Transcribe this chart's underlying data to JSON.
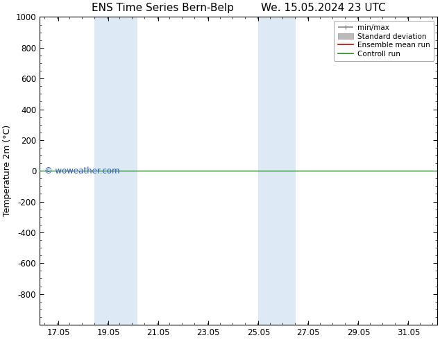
{
  "title": "ENS Time Series Bern-Belp        We. 15.05.2024 23 UTC",
  "ylabel": "Temperature 2m (°C)",
  "x_tick_labels": [
    "17.05",
    "19.05",
    "21.05",
    "23.05",
    "25.05",
    "27.05",
    "29.05",
    "31.05"
  ],
  "x_tick_values": [
    17.05,
    19.05,
    21.05,
    23.05,
    25.05,
    27.05,
    29.05,
    31.05
  ],
  "x_min": 16.3,
  "x_max": 32.2,
  "ylim_top": -1000,
  "ylim_bottom": 1000,
  "yticks": [
    -800,
    -600,
    -400,
    -200,
    0,
    200,
    400,
    600,
    800,
    1000
  ],
  "shaded_bands": [
    {
      "x_start": 18.5,
      "x_end": 20.2
    },
    {
      "x_start": 25.05,
      "x_end": 26.55
    }
  ],
  "shaded_color": "#ddeaf5",
  "horizontal_line_y": 0,
  "line_color_green": "#228B22",
  "line_color_red": "#cc0000",
  "watermark": "© woweather.com",
  "watermark_color": "#3355cc",
  "legend_entries": [
    "min/max",
    "Standard deviation",
    "Ensemble mean run",
    "Controll run"
  ],
  "legend_line_colors": [
    "#888888",
    "#bbbbbb",
    "#cc0000",
    "#228B22"
  ],
  "bg_color": "#ffffff",
  "title_fontsize": 11,
  "axis_fontsize": 9,
  "tick_fontsize": 8.5
}
